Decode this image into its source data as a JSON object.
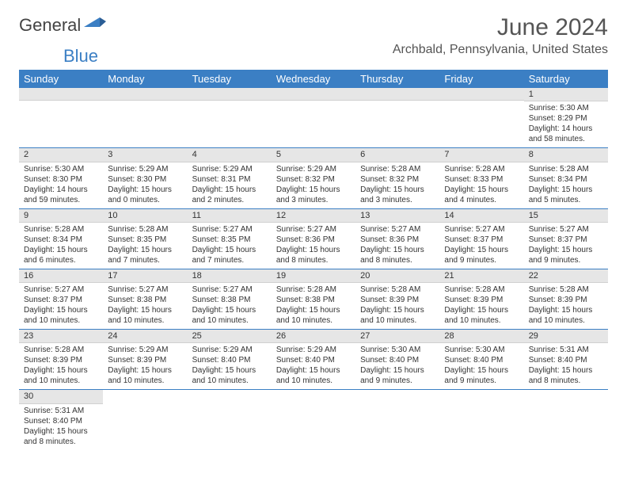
{
  "brand": {
    "part1": "General",
    "part2": "Blue"
  },
  "title": "June 2024",
  "location": "Archbald, Pennsylvania, United States",
  "colors": {
    "header_bg": "#3b7fc4",
    "header_text": "#ffffff",
    "daynum_bg": "#e6e6e6",
    "row_border": "#3b7fc4",
    "text": "#333333",
    "page_bg": "#ffffff"
  },
  "typography": {
    "title_fontsize": 30,
    "location_fontsize": 16,
    "dayheader_fontsize": 13,
    "daynum_fontsize": 11,
    "body_fontsize": 10
  },
  "day_headers": [
    "Sunday",
    "Monday",
    "Tuesday",
    "Wednesday",
    "Thursday",
    "Friday",
    "Saturday"
  ],
  "weeks": [
    [
      null,
      null,
      null,
      null,
      null,
      null,
      {
        "n": "1",
        "sunrise": "5:30 AM",
        "sunset": "8:29 PM",
        "daylight": "14 hours and 58 minutes."
      }
    ],
    [
      {
        "n": "2",
        "sunrise": "5:30 AM",
        "sunset": "8:30 PM",
        "daylight": "14 hours and 59 minutes."
      },
      {
        "n": "3",
        "sunrise": "5:29 AM",
        "sunset": "8:30 PM",
        "daylight": "15 hours and 0 minutes."
      },
      {
        "n": "4",
        "sunrise": "5:29 AM",
        "sunset": "8:31 PM",
        "daylight": "15 hours and 2 minutes."
      },
      {
        "n": "5",
        "sunrise": "5:29 AM",
        "sunset": "8:32 PM",
        "daylight": "15 hours and 3 minutes."
      },
      {
        "n": "6",
        "sunrise": "5:28 AM",
        "sunset": "8:32 PM",
        "daylight": "15 hours and 3 minutes."
      },
      {
        "n": "7",
        "sunrise": "5:28 AM",
        "sunset": "8:33 PM",
        "daylight": "15 hours and 4 minutes."
      },
      {
        "n": "8",
        "sunrise": "5:28 AM",
        "sunset": "8:34 PM",
        "daylight": "15 hours and 5 minutes."
      }
    ],
    [
      {
        "n": "9",
        "sunrise": "5:28 AM",
        "sunset": "8:34 PM",
        "daylight": "15 hours and 6 minutes."
      },
      {
        "n": "10",
        "sunrise": "5:28 AM",
        "sunset": "8:35 PM",
        "daylight": "15 hours and 7 minutes."
      },
      {
        "n": "11",
        "sunrise": "5:27 AM",
        "sunset": "8:35 PM",
        "daylight": "15 hours and 7 minutes."
      },
      {
        "n": "12",
        "sunrise": "5:27 AM",
        "sunset": "8:36 PM",
        "daylight": "15 hours and 8 minutes."
      },
      {
        "n": "13",
        "sunrise": "5:27 AM",
        "sunset": "8:36 PM",
        "daylight": "15 hours and 8 minutes."
      },
      {
        "n": "14",
        "sunrise": "5:27 AM",
        "sunset": "8:37 PM",
        "daylight": "15 hours and 9 minutes."
      },
      {
        "n": "15",
        "sunrise": "5:27 AM",
        "sunset": "8:37 PM",
        "daylight": "15 hours and 9 minutes."
      }
    ],
    [
      {
        "n": "16",
        "sunrise": "5:27 AM",
        "sunset": "8:37 PM",
        "daylight": "15 hours and 10 minutes."
      },
      {
        "n": "17",
        "sunrise": "5:27 AM",
        "sunset": "8:38 PM",
        "daylight": "15 hours and 10 minutes."
      },
      {
        "n": "18",
        "sunrise": "5:27 AM",
        "sunset": "8:38 PM",
        "daylight": "15 hours and 10 minutes."
      },
      {
        "n": "19",
        "sunrise": "5:28 AM",
        "sunset": "8:38 PM",
        "daylight": "15 hours and 10 minutes."
      },
      {
        "n": "20",
        "sunrise": "5:28 AM",
        "sunset": "8:39 PM",
        "daylight": "15 hours and 10 minutes."
      },
      {
        "n": "21",
        "sunrise": "5:28 AM",
        "sunset": "8:39 PM",
        "daylight": "15 hours and 10 minutes."
      },
      {
        "n": "22",
        "sunrise": "5:28 AM",
        "sunset": "8:39 PM",
        "daylight": "15 hours and 10 minutes."
      }
    ],
    [
      {
        "n": "23",
        "sunrise": "5:28 AM",
        "sunset": "8:39 PM",
        "daylight": "15 hours and 10 minutes."
      },
      {
        "n": "24",
        "sunrise": "5:29 AM",
        "sunset": "8:39 PM",
        "daylight": "15 hours and 10 minutes."
      },
      {
        "n": "25",
        "sunrise": "5:29 AM",
        "sunset": "8:40 PM",
        "daylight": "15 hours and 10 minutes."
      },
      {
        "n": "26",
        "sunrise": "5:29 AM",
        "sunset": "8:40 PM",
        "daylight": "15 hours and 10 minutes."
      },
      {
        "n": "27",
        "sunrise": "5:30 AM",
        "sunset": "8:40 PM",
        "daylight": "15 hours and 9 minutes."
      },
      {
        "n": "28",
        "sunrise": "5:30 AM",
        "sunset": "8:40 PM",
        "daylight": "15 hours and 9 minutes."
      },
      {
        "n": "29",
        "sunrise": "5:31 AM",
        "sunset": "8:40 PM",
        "daylight": "15 hours and 8 minutes."
      }
    ],
    [
      {
        "n": "30",
        "sunrise": "5:31 AM",
        "sunset": "8:40 PM",
        "daylight": "15 hours and 8 minutes."
      },
      null,
      null,
      null,
      null,
      null,
      null
    ]
  ],
  "labels": {
    "sunrise_prefix": "Sunrise: ",
    "sunset_prefix": "Sunset: ",
    "daylight_prefix": "Daylight: "
  }
}
